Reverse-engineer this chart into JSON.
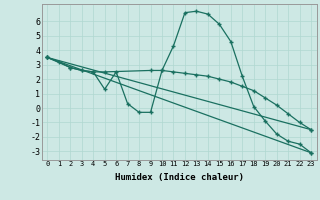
{
  "xlabel": "Humidex (Indice chaleur)",
  "bg_color": "#cde8e4",
  "grid_color": "#b0d8d0",
  "line_color": "#1a7060",
  "xlim": [
    -0.5,
    23.5
  ],
  "ylim": [
    -3.6,
    7.2
  ],
  "yticks": [
    -3,
    -2,
    -1,
    0,
    1,
    2,
    3,
    4,
    5,
    6
  ],
  "xticks": [
    0,
    1,
    2,
    3,
    4,
    5,
    6,
    7,
    8,
    9,
    10,
    11,
    12,
    13,
    14,
    15,
    16,
    17,
    18,
    19,
    20,
    21,
    22,
    23
  ],
  "line1_x": [
    0,
    1,
    2,
    3,
    4,
    5,
    6,
    7,
    8,
    9,
    10,
    11,
    12,
    13,
    14,
    15,
    16,
    17,
    18,
    19,
    20,
    21,
    22,
    23
  ],
  "line1_y": [
    3.5,
    3.2,
    2.8,
    2.6,
    2.5,
    1.3,
    2.5,
    0.3,
    -0.3,
    -0.3,
    2.6,
    4.3,
    6.6,
    6.7,
    6.5,
    5.8,
    4.6,
    2.2,
    0.1,
    -0.9,
    -1.8,
    -2.3,
    -2.5,
    -3.1
  ],
  "line2_x": [
    0,
    2,
    3,
    4,
    5,
    9,
    10,
    11,
    12,
    13,
    14,
    15,
    16,
    17,
    18,
    19,
    20,
    21,
    22,
    23
  ],
  "line2_y": [
    3.5,
    2.8,
    2.6,
    2.5,
    2.5,
    2.6,
    2.6,
    2.5,
    2.4,
    2.3,
    2.2,
    2.0,
    1.8,
    1.5,
    1.2,
    0.7,
    0.2,
    -0.4,
    -1.0,
    -1.5
  ],
  "line3_x": [
    0,
    23
  ],
  "line3_y": [
    3.5,
    -3.1
  ],
  "line4_x": [
    0,
    23
  ],
  "line4_y": [
    3.5,
    -1.5
  ]
}
